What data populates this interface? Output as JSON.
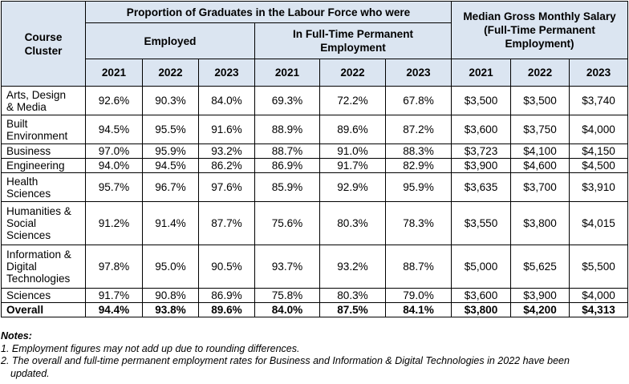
{
  "table": {
    "col_cluster": "Course\nCluster",
    "group_proportion": "Proportion of Graduates in the Labour Force who were",
    "group_employed": "Employed",
    "group_ftpe": "In Full-Time Permanent Employment",
    "group_salary": "Median Gross Monthly Salary\n(Full-Time Permanent Employment)",
    "years": [
      "2021",
      "2022",
      "2023",
      "2021",
      "2022",
      "2023",
      "2021",
      "2022",
      "2023"
    ],
    "rows": [
      {
        "cluster": "Arts, Design\n& Media",
        "values": [
          "92.6%",
          "90.3%",
          "84.0%",
          "69.3%",
          "72.2%",
          "67.8%",
          "$3,500",
          "$3,500",
          "$3,740"
        ]
      },
      {
        "cluster": "Built\nEnvironment",
        "values": [
          "94.5%",
          "95.5%",
          "91.6%",
          "88.9%",
          "89.6%",
          "87.2%",
          "$3,600",
          "$3,750",
          "$4,000"
        ]
      },
      {
        "cluster": "Business",
        "values": [
          "97.0%",
          "95.9%",
          "93.2%",
          "88.7%",
          "91.0%",
          "88.3%",
          "$3,723",
          "$4,100",
          "$4,150"
        ]
      },
      {
        "cluster": "Engineering",
        "values": [
          "94.0%",
          "94.5%",
          "86.2%",
          "86.9%",
          "91.7%",
          "82.9%",
          "$3,900",
          "$4,600",
          "$4,500"
        ]
      },
      {
        "cluster": "Health\nSciences",
        "values": [
          "95.7%",
          "96.7%",
          "97.6%",
          "85.9%",
          "92.9%",
          "95.9%",
          "$3,635",
          "$3,700",
          "$3,910"
        ]
      },
      {
        "cluster": "Humanities &\nSocial\nSciences",
        "values": [
          "91.2%",
          "91.4%",
          "87.7%",
          "75.6%",
          "80.3%",
          "78.3%",
          "$3,550",
          "$3,800",
          "$4,015"
        ]
      },
      {
        "cluster": "Information &\nDigital\nTechnologies",
        "values": [
          "97.8%",
          "95.0%",
          "90.5%",
          "93.7%",
          "93.2%",
          "88.7%",
          "$5,000",
          "$5,625",
          "$5,500"
        ]
      },
      {
        "cluster": "Sciences",
        "values": [
          "91.7%",
          "90.8%",
          "86.9%",
          "75.8%",
          "80.3%",
          "79.0%",
          "$3,600",
          "$3,900",
          "$4,000"
        ]
      }
    ],
    "overall": {
      "cluster": "Overall",
      "values": [
        "94.4%",
        "93.8%",
        "89.6%",
        "84.0%",
        "87.5%",
        "84.1%",
        "$3,800",
        "$4,200",
        "$4,313"
      ]
    }
  },
  "notes": {
    "title": "Notes:",
    "items": [
      "1. Employment figures may not add up due to rounding differences.",
      "2. The overall and full-time permanent employment rates for Business and Information & Digital Technologies in 2022 have been",
      "updated."
    ]
  },
  "colors": {
    "header_bg": "#dbe5f1",
    "border": "#000000"
  }
}
